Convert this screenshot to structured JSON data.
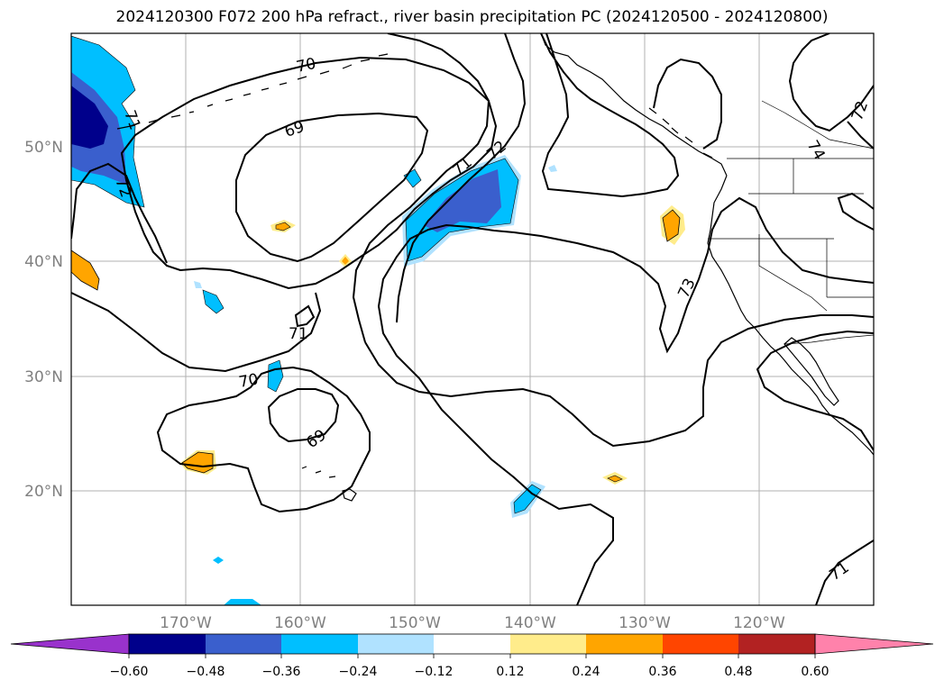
{
  "title": "2024120300 F072 200 hPa refract., river basin precipitation PC (2024120500 - 2024120800)",
  "colors": {
    "neg_060": "#9932cc",
    "neg_048": "#00008b",
    "neg_036": "#3a5fcd",
    "neg_024": "#00bfff",
    "neg_012": "#b0e2ff",
    "neutral": "#ffffff",
    "pos_012": "#ffec8b",
    "pos_024": "#ffa500",
    "pos_036": "#ff4500",
    "pos_048": "#b22222",
    "pos_060": "#ff82ab",
    "grid": "#b0b0b0",
    "coast": "#000000",
    "contour": "#000000",
    "tick_label": "#808080"
  },
  "map": {
    "projection": "PlateCarree",
    "lon_range": [
      "180°",
      "110°W"
    ],
    "lat_range": [
      "10°N",
      "60°N"
    ],
    "lat_ticks": [
      "20°N",
      "30°N",
      "40°N",
      "50°N"
    ],
    "lon_ticks": [
      "170°W",
      "160°W",
      "150°W",
      "140°W",
      "130°W",
      "120°W"
    ],
    "gridlines": true
  },
  "contours": {
    "variable": "200 hPa refractivity",
    "labels": [
      "70",
      "69",
      "71",
      "72",
      "71",
      "69",
      "71",
      "72",
      "70",
      "73",
      "74",
      "71",
      "72",
      "71"
    ]
  },
  "colorbar": {
    "orientation": "horizontal",
    "extend": "both",
    "tick_labels": [
      "−0.60",
      "−0.48",
      "−0.36",
      "−0.24",
      "−0.12",
      "0.12",
      "0.24",
      "0.36",
      "0.48",
      "0.60"
    ]
  }
}
